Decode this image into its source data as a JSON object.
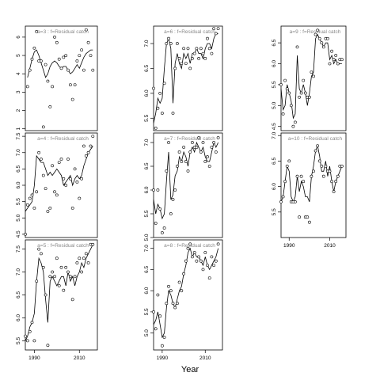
{
  "figure": {
    "xlabel": "Year"
  },
  "chart_data": [
    {
      "type": "scatter",
      "title": "a=3  :  f=Residual catch",
      "xlim": [
        1986,
        2018
      ],
      "ylim": [
        0.9,
        6.6
      ],
      "yticks": [
        1,
        2,
        3,
        4,
        5,
        6
      ],
      "xticks": [],
      "points": {
        "x": [
          1987,
          1988,
          1989,
          1990,
          1991,
          1992,
          1993,
          1994,
          1995,
          1996,
          1997,
          1998,
          1999,
          2000,
          2001,
          2002,
          2003,
          2004,
          2005,
          2006,
          2007,
          2008,
          2009,
          2010,
          2011,
          2012,
          2013,
          2014,
          2015,
          2016
        ],
        "y": [
          3.3,
          4.2,
          4.8,
          5.4,
          6.3,
          4.7,
          4.7,
          1.1,
          4.5,
          3.6,
          2.2,
          3.3,
          6.0,
          5.7,
          4.8,
          4.3,
          4.9,
          5.0,
          4.2,
          3.4,
          2.6,
          3.4,
          4.7,
          5.0,
          5.3,
          4.2,
          6.4,
          5.7,
          5.0,
          4.2
        ]
      },
      "line": {
        "x": [
          1987,
          1988,
          1989,
          1990,
          1991,
          1992,
          1993,
          1994,
          1995,
          1996,
          1997,
          1998,
          1999,
          2000,
          2001,
          2002,
          2003,
          2004,
          2005,
          2006,
          2007,
          2008,
          2009,
          2010,
          2011,
          2012,
          2013,
          2014,
          2015,
          2016
        ],
        "y": [
          3.8,
          4.3,
          4.8,
          5.2,
          5.3,
          5.0,
          4.6,
          4.2,
          3.8,
          4.0,
          4.4,
          4.6,
          4.7,
          4.6,
          4.4,
          4.3,
          4.4,
          4.4,
          4.2,
          4.0,
          4.1,
          4.3,
          4.5,
          4.3,
          4.6,
          4.9,
          5.1,
          5.2,
          5.3,
          5.3
        ]
      }
    },
    {
      "type": "scatter",
      "title": "a=4  :  f=Residual catch",
      "xlim": [
        1986,
        2018
      ],
      "ylim": [
        4.4,
        7.6
      ],
      "yticks": [
        4.5,
        5.0,
        5.5,
        6.0,
        6.5,
        7.0,
        7.5
      ],
      "xticks": [],
      "points": {
        "x": [
          1986,
          1987,
          1988,
          1989,
          1990,
          1991,
          1992,
          1993,
          1994,
          1995,
          1996,
          1997,
          1998,
          1999,
          2000,
          2001,
          2002,
          2003,
          2004,
          2005,
          2006,
          2007,
          2008,
          2009,
          2010,
          2011,
          2012,
          2013,
          2014,
          2015,
          2016
        ],
        "y": [
          4.5,
          5.4,
          5.6,
          5.7,
          5.3,
          5.8,
          7.0,
          6.8,
          6.3,
          5.9,
          5.2,
          5.3,
          6.6,
          5.8,
          5.7,
          6.7,
          6.8,
          6.2,
          6.0,
          6.8,
          6.2,
          5.3,
          6.5,
          6.1,
          5.6,
          6.2,
          7.2,
          6.9,
          7.0,
          7.2,
          7.5
        ]
      },
      "line": {
        "x": [
          1986,
          1987,
          1988,
          1989,
          1990,
          1991,
          1992,
          1993,
          1994,
          1995,
          1996,
          1997,
          1998,
          1999,
          2000,
          2001,
          2002,
          2003,
          2004,
          2005,
          2006,
          2007,
          2008,
          2009,
          2010,
          2011,
          2012,
          2013,
          2014,
          2015,
          2016
        ],
        "y": [
          5.2,
          5.3,
          5.4,
          5.5,
          6.0,
          6.9,
          6.8,
          6.7,
          6.7,
          6.5,
          6.3,
          6.4,
          6.3,
          6.4,
          6.5,
          6.4,
          6.3,
          6.0,
          6.1,
          6.2,
          6.3,
          6.0,
          6.2,
          6.3,
          6.2,
          6.3,
          6.6,
          6.8,
          7.0,
          7.1,
          7.2
        ]
      }
    },
    {
      "type": "scatter",
      "title": "a=5  :  f=Residual catch",
      "xlim": [
        1986,
        2018
      ],
      "ylim": [
        5.3,
        7.7
      ],
      "yticks": [
        5.5,
        6.0,
        6.5,
        7.0,
        7.5
      ],
      "xticks": [
        1990,
        2010
      ],
      "points": {
        "x": [
          1986,
          1987,
          1988,
          1989,
          1990,
          1991,
          1992,
          1993,
          1994,
          1995,
          1996,
          1997,
          1998,
          1999,
          2000,
          2001,
          2002,
          2003,
          2004,
          2005,
          2006,
          2007,
          2008,
          2009,
          2010,
          2011,
          2012,
          2013,
          2014,
          2015,
          2016
        ],
        "y": [
          5.6,
          5.5,
          5.7,
          5.9,
          5.5,
          6.8,
          7.5,
          7.4,
          7.1,
          6.5,
          5.4,
          6.9,
          7.0,
          6.9,
          7.3,
          6.7,
          7.1,
          6.6,
          7.1,
          7.0,
          6.9,
          6.4,
          6.9,
          7.2,
          7.3,
          7.0,
          7.3,
          7.4,
          7.2,
          7.6,
          7.6
        ]
      },
      "line": {
        "x": [
          1986,
          1987,
          1988,
          1989,
          1990,
          1991,
          1992,
          1993,
          1994,
          1995,
          1996,
          1997,
          1998,
          1999,
          2000,
          2001,
          2002,
          2003,
          2004,
          2005,
          2006,
          2007,
          2008,
          2009,
          2010,
          2011,
          2012,
          2013,
          2014,
          2015,
          2016
        ],
        "y": [
          5.5,
          5.6,
          5.8,
          5.9,
          6.1,
          6.8,
          7.3,
          7.2,
          7.0,
          6.4,
          5.9,
          6.8,
          6.9,
          6.8,
          6.7,
          6.8,
          6.9,
          6.9,
          6.7,
          7.0,
          6.8,
          6.9,
          6.7,
          6.9,
          7.0,
          7.2,
          7.1,
          7.3,
          7.4,
          7.5,
          7.6
        ]
      }
    },
    {
      "type": "scatter",
      "title": "a=6  :  f=Residual catch",
      "xlim": [
        1986,
        2018
      ],
      "ylim": [
        5.25,
        7.35
      ],
      "yticks": [
        5.5,
        6.0,
        6.5,
        7.0
      ],
      "xticks": [],
      "points": {
        "x": [
          1986,
          1987,
          1988,
          1989,
          1990,
          1991,
          1992,
          1993,
          1994,
          1995,
          1996,
          1997,
          1998,
          1999,
          2000,
          2001,
          2002,
          2003,
          2004,
          2005,
          2006,
          2007,
          2008,
          2009,
          2010,
          2011,
          2012,
          2013,
          2014,
          2015,
          2016
        ],
        "y": [
          6.1,
          5.3,
          5.7,
          6.0,
          5.6,
          6.2,
          7.0,
          7.1,
          7.0,
          5.6,
          6.5,
          7.0,
          6.7,
          6.6,
          6.9,
          6.6,
          6.9,
          6.5,
          6.7,
          6.8,
          6.9,
          6.7,
          6.9,
          6.8,
          6.7,
          7.1,
          6.9,
          6.8,
          7.3,
          7.2,
          7.3
        ]
      },
      "line": {
        "x": [
          1986,
          1987,
          1988,
          1989,
          1990,
          1991,
          1992,
          1993,
          1994,
          1995,
          1996,
          1997,
          1998,
          1999,
          2000,
          2001,
          2002,
          2003,
          2004,
          2005,
          2006,
          2007,
          2008,
          2009,
          2010,
          2011,
          2012,
          2013,
          2014,
          2015,
          2016
        ],
        "y": [
          5.4,
          5.6,
          5.9,
          5.8,
          5.9,
          6.5,
          7.0,
          7.1,
          6.9,
          5.8,
          6.6,
          6.8,
          6.6,
          6.5,
          6.8,
          6.7,
          6.8,
          6.6,
          6.8,
          6.8,
          6.9,
          6.8,
          6.8,
          6.7,
          6.9,
          7.0,
          7.0,
          6.9,
          7.1,
          7.2,
          7.2
        ]
      }
    },
    {
      "type": "scatter",
      "title": "a=7  :  f=Residual catch",
      "xlim": [
        1986,
        2018
      ],
      "ylim": [
        5.0,
        7.2
      ],
      "yticks": [
        5.0,
        5.5,
        6.0,
        6.5,
        7.0
      ],
      "xticks": [],
      "points": {
        "x": [
          1986,
          1987,
          1988,
          1989,
          1990,
          1991,
          1992,
          1993,
          1994,
          1995,
          1996,
          1997,
          1998,
          1999,
          2000,
          2001,
          2002,
          2003,
          2004,
          2005,
          2006,
          2007,
          2008,
          2009,
          2010,
          2011,
          2012,
          2013,
          2014,
          2015,
          2016
        ],
        "y": [
          6.0,
          5.3,
          6.0,
          5.6,
          5.1,
          5.2,
          6.4,
          7.0,
          5.5,
          5.8,
          6.0,
          6.5,
          6.8,
          6.6,
          6.9,
          6.6,
          6.4,
          6.8,
          7.0,
          6.9,
          6.9,
          7.1,
          6.8,
          7.0,
          6.6,
          6.7,
          6.5,
          6.9,
          7.0,
          6.8,
          7.1
        ]
      },
      "line": {
        "x": [
          1986,
          1987,
          1988,
          1989,
          1990,
          1991,
          1992,
          1993,
          1994,
          1995,
          1996,
          1997,
          1998,
          1999,
          2000,
          2001,
          2002,
          2003,
          2004,
          2005,
          2006,
          2007,
          2008,
          2009,
          2010,
          2011,
          2012,
          2013,
          2014,
          2015,
          2016
        ],
        "y": [
          5.8,
          5.5,
          5.7,
          5.6,
          5.4,
          5.5,
          6.2,
          6.8,
          5.8,
          5.9,
          6.3,
          6.4,
          6.7,
          6.6,
          6.8,
          6.7,
          6.5,
          6.8,
          6.9,
          6.8,
          7.0,
          6.9,
          6.8,
          6.9,
          6.7,
          6.6,
          6.6,
          6.8,
          7.0,
          6.9,
          7.0
        ]
      }
    },
    {
      "type": "scatter",
      "title": "a=8  :  f=Residual catch",
      "xlim": [
        1986,
        2018
      ],
      "ylim": [
        4.6,
        7.2
      ],
      "yticks": [
        5.0,
        5.5,
        6.0,
        6.5,
        7.0
      ],
      "xticks": [
        1990,
        2010
      ],
      "points": {
        "x": [
          1986,
          1987,
          1988,
          1989,
          1990,
          1991,
          1992,
          1993,
          1994,
          1995,
          1996,
          1997,
          1998,
          1999,
          2000,
          2001,
          2002,
          2003,
          2004,
          2005,
          2006,
          2007,
          2008,
          2009,
          2010,
          2011,
          2012,
          2013,
          2014,
          2015,
          2016
        ],
        "y": [
          5.5,
          5.1,
          5.9,
          5.4,
          4.7,
          4.9,
          5.7,
          6.1,
          6.0,
          5.7,
          5.6,
          5.7,
          6.2,
          6.0,
          6.4,
          6.7,
          7.0,
          7.1,
          6.8,
          6.9,
          6.7,
          6.8,
          6.7,
          6.5,
          6.9,
          6.6,
          6.3,
          6.8,
          6.6,
          6.7,
          7.1
        ]
      },
      "line": {
        "x": [
          1986,
          1987,
          1988,
          1989,
          1990,
          1991,
          1992,
          1993,
          1994,
          1995,
          1996,
          1997,
          1998,
          1999,
          2000,
          2001,
          2002,
          2003,
          2004,
          2005,
          2006,
          2007,
          2008,
          2009,
          2010,
          2011,
          2012,
          2013,
          2014,
          2015,
          2016
        ],
        "y": [
          5.2,
          5.3,
          5.5,
          5.2,
          4.9,
          5.0,
          5.6,
          6.0,
          5.9,
          5.7,
          5.6,
          5.8,
          6.0,
          6.1,
          6.4,
          6.6,
          6.9,
          7.0,
          6.8,
          6.9,
          6.8,
          6.8,
          6.7,
          6.6,
          6.8,
          6.6,
          6.5,
          6.6,
          6.7,
          6.8,
          7.0
        ]
      }
    },
    {
      "type": "scatter",
      "title": "a=9  :  f=Residual catch",
      "xlim": [
        1986,
        2018
      ],
      "ylim": [
        4.4,
        6.9
      ],
      "yticks": [
        4.5,
        5.0,
        5.5,
        6.0,
        6.5
      ],
      "xticks": [],
      "points": {
        "x": [
          1986,
          1987,
          1988,
          1989,
          1990,
          1991,
          1992,
          1993,
          1994,
          1995,
          1996,
          1997,
          1998,
          1999,
          2000,
          2001,
          2002,
          2003,
          2004,
          2005,
          2006,
          2007,
          2008,
          2009,
          2010,
          2011,
          2012,
          2013,
          2014,
          2015,
          2016
        ],
        "y": [
          5.5,
          4.8,
          5.6,
          5.4,
          5.3,
          5.0,
          4.5,
          4.6,
          6.4,
          5.2,
          5.3,
          5.6,
          5.3,
          5.2,
          5.2,
          5.8,
          5.7,
          6.7,
          6.8,
          6.6,
          6.5,
          6.4,
          6.6,
          6.6,
          6.0,
          6.3,
          6.1,
          6.2,
          6.0,
          6.1,
          6.1
        ]
      },
      "line": {
        "x": [
          1986,
          1987,
          1988,
          1989,
          1990,
          1991,
          1992,
          1993,
          1994,
          1995,
          1996,
          1997,
          1998,
          1999,
          2000,
          2001,
          2002,
          2003,
          2004,
          2005,
          2006,
          2007,
          2008,
          2009,
          2010,
          2011,
          2012,
          2013,
          2014,
          2015,
          2016
        ],
        "y": [
          5.4,
          4.9,
          5.0,
          5.5,
          5.3,
          5.1,
          4.7,
          4.8,
          6.2,
          5.4,
          5.3,
          5.5,
          5.3,
          5.0,
          5.3,
          5.7,
          5.8,
          6.6,
          6.7,
          6.6,
          6.5,
          6.4,
          6.5,
          6.5,
          6.1,
          6.2,
          6.0,
          6.1,
          6.0,
          6.0,
          6.0
        ]
      }
    },
    {
      "type": "scatter",
      "title": "a=10  :  f=Residual catch",
      "xlim": [
        1986,
        2018
      ],
      "ylim": [
        5.0,
        7.05
      ],
      "yticks": [
        5.5,
        6.0,
        6.5,
        7.0
      ],
      "xticks": [
        1990,
        2010
      ],
      "points": {
        "x": [
          1986,
          1987,
          1988,
          1989,
          1990,
          1991,
          1992,
          1993,
          1994,
          1995,
          1996,
          1997,
          1998,
          1999,
          2000,
          2001,
          2002,
          2003,
          2004,
          2005,
          2006,
          2007,
          2008,
          2009,
          2010,
          2011,
          2012,
          2013,
          2014,
          2015,
          2016
        ],
        "y": [
          5.7,
          5.8,
          6.1,
          6.4,
          6.5,
          5.7,
          5.7,
          5.7,
          6.2,
          5.4,
          6.2,
          6.1,
          5.4,
          5.4,
          5.3,
          6.2,
          6.3,
          6.7,
          6.8,
          6.5,
          6.4,
          6.2,
          6.4,
          6.3,
          6.3,
          6.1,
          5.9,
          6.1,
          6.2,
          6.4,
          6.4
        ]
      },
      "line": {
        "x": [
          1986,
          1987,
          1988,
          1989,
          1990,
          1991,
          1992,
          1993,
          1994,
          1995,
          1996,
          1997,
          1998,
          1999,
          2000,
          2001,
          2002,
          2003,
          2004,
          2005,
          2006,
          2007,
          2008,
          2009,
          2010,
          2011,
          2012,
          2013,
          2014,
          2015,
          2016
        ],
        "y": [
          5.7,
          5.8,
          6.1,
          6.4,
          6.3,
          5.8,
          5.7,
          5.8,
          6.2,
          5.9,
          6.1,
          6.0,
          5.8,
          5.8,
          5.7,
          6.2,
          6.4,
          6.7,
          6.8,
          6.6,
          6.3,
          6.3,
          6.5,
          6.2,
          6.4,
          6.1,
          5.9,
          6.1,
          6.2,
          6.3,
          6.4
        ]
      }
    }
  ]
}
